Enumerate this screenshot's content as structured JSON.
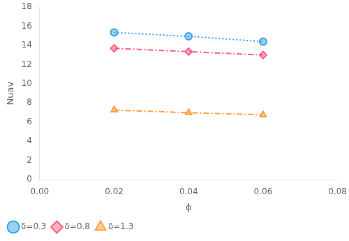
{
  "chart_data": {
    "type": "line",
    "x": [
      0.02,
      0.04,
      0.06
    ],
    "series": [
      {
        "name": "δ=0.3",
        "values": [
          15.35,
          14.95,
          14.4
        ],
        "marker": "circle",
        "line_style": "dotted"
      },
      {
        "name": "δ=0.8",
        "values": [
          13.7,
          13.35,
          13.0
        ],
        "marker": "diamond",
        "line_style": "dashdot"
      },
      {
        "name": "δ=1.3",
        "values": [
          7.25,
          6.98,
          6.75
        ],
        "marker": "triangle",
        "line_style": "dashdot"
      }
    ],
    "xlabel": "ϕ",
    "ylabel": "Nuav",
    "xlim": [
      0,
      0.08
    ],
    "xticks": [
      {
        "value": 0,
        "label": "0.00"
      },
      0.02,
      0.04,
      0.06,
      0.08
    ],
    "ylim": [
      0,
      18
    ],
    "yticks": [
      0,
      2,
      4,
      6,
      8,
      10,
      12,
      14,
      16,
      18
    ],
    "grid": false,
    "legend": "lower left"
  }
}
